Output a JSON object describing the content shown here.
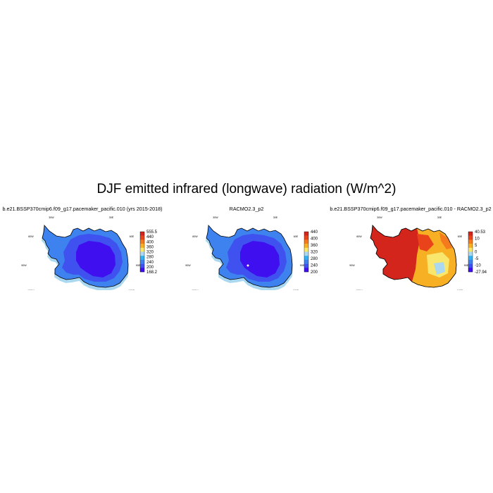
{
  "figure": {
    "title": "DJF emitted infrared (longwave) radiation (W/m^2)"
  },
  "panels": [
    {
      "title": "b.e21.BSSP370cmip6.f09_g17.pacemaker_pacific.010 (yrs 2015-2018)",
      "colormap": [
        "#3f0ff0",
        "#3f52ef",
        "#3d82ef",
        "#33b0f2",
        "#a9d8f0",
        "#f8e66d",
        "#f7b023",
        "#f47a1d",
        "#e9431b",
        "#d4251d"
      ],
      "colorbar_labels": [
        "555.5",
        "440",
        "400",
        "360",
        "320",
        "280",
        "240",
        "200",
        "168.2"
      ],
      "style": "abs1"
    },
    {
      "title": "RACMO2.3_p2",
      "colormap": [
        "#3f0ff0",
        "#3f52ef",
        "#3d82ef",
        "#33b0f2",
        "#a9d8f0",
        "#f8e66d",
        "#f7b023",
        "#f47a1d",
        "#e9431b",
        "#d4251d"
      ],
      "colorbar_labels": [
        "440",
        "400",
        "360",
        "320",
        "280",
        "240",
        "200"
      ],
      "style": "abs2"
    },
    {
      "title": "b.e21.BSSP370cmip6.f09_g17.pacemaker_pacific.010 - RACMO2.3_p2",
      "colormap": [
        "#3f0ff0",
        "#3f52ef",
        "#3d82ef",
        "#33b0f2",
        "#a9d8f0",
        "#f8e66d",
        "#f7b023",
        "#f47a1d",
        "#e9431b",
        "#d4251d"
      ],
      "colorbar_labels": [
        "40.53",
        "10",
        "5",
        "0",
        "-5",
        "-10",
        "-27.94"
      ],
      "style": "diff"
    }
  ],
  "lon_labels": [
    "30W",
    "30E",
    "60W",
    "60E",
    "90W",
    "90E",
    "120W",
    "120E",
    "150W",
    "150E",
    "180"
  ]
}
